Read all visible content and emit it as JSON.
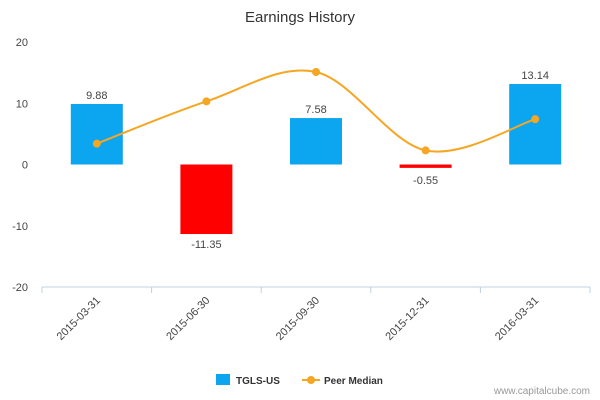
{
  "chart_data": {
    "type": "bar",
    "title": "Earnings History",
    "categories": [
      "2015-03-31",
      "2015-06-30",
      "2015-09-30",
      "2015-12-31",
      "2016-03-31"
    ],
    "series": [
      {
        "name": "TGLS-US",
        "type": "bar",
        "values": [
          9.88,
          -11.35,
          7.58,
          -0.55,
          13.14
        ],
        "data_labels": [
          "9.88",
          "-11.35",
          "7.58",
          "-0.55",
          "13.14"
        ],
        "positive_color": "#0BA5F0",
        "negative_color": "#FF0000"
      },
      {
        "name": "Peer Median",
        "type": "line",
        "values": [
          3.4,
          10.3,
          15.1,
          2.3,
          7.4
        ],
        "color": "#F5A623"
      }
    ],
    "ylim": [
      -20,
      20
    ],
    "yticks": [
      "20",
      "10",
      "0",
      "-10",
      "-20"
    ],
    "ytick_values": [
      20,
      10,
      0,
      -10,
      -20
    ],
    "legend_position": "bottom-center",
    "grid": false
  },
  "credit": "www.capitalcube.com"
}
